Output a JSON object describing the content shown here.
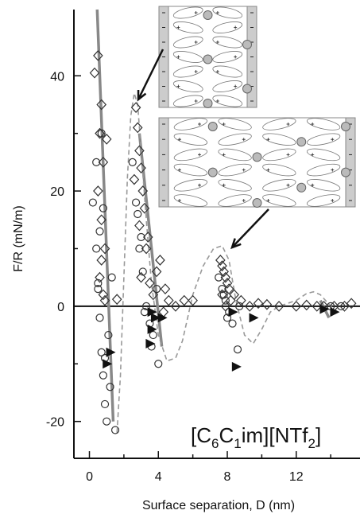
{
  "chart_data": {
    "type": "scatter",
    "xlabel": "Surface separation, D (nm)",
    "ylabel": "F/R (mN/m)",
    "annotation": [
      "[C",
      "6",
      "C",
      "1",
      "im][NTf",
      "2",
      "]"
    ],
    "xlim": [
      -0.9,
      15.7
    ],
    "ylim": [
      -26.4,
      51.5
    ],
    "xticks": [
      0,
      4,
      8,
      12
    ],
    "xminorticks": [
      2,
      6,
      10,
      14
    ],
    "yticks": [
      -20,
      0,
      20,
      40
    ],
    "yminorticks": [
      -10,
      10,
      30
    ],
    "hlines": [
      0
    ],
    "series": [
      {
        "marker": "diamond",
        "color": "#333333",
        "x": [
          0.3,
          0.5,
          0.7,
          0.6,
          0.8,
          0.5,
          0.7,
          0.9,
          0.6,
          0.8,
          1.0,
          0.7,
          0.9,
          2.7,
          2.8,
          2.9,
          3.0,
          3.1,
          3.2,
          2.6,
          2.9,
          3.3,
          3.0,
          3.4,
          3.5,
          3.7,
          3.9,
          4.1,
          4.4,
          4.6,
          5.0,
          5.5,
          6.0,
          7.6,
          7.7,
          7.8,
          7.9,
          8.0,
          8.1,
          7.7,
          7.9,
          8.2,
          8.4,
          8.8,
          9.3,
          9.8,
          10.3,
          11.0,
          12.0,
          12.6,
          13.2,
          13.6,
          14.2,
          14.8,
          15.2,
          1.6,
          4.3
        ],
        "values": [
          40.5,
          43.5,
          35,
          30,
          25,
          20,
          15,
          10,
          5,
          2,
          29,
          8,
          1,
          34.5,
          31,
          27,
          24,
          20,
          17,
          22,
          14,
          10,
          5,
          12,
          4,
          2,
          6,
          8,
          3,
          1,
          0,
          1,
          1,
          8,
          7,
          6,
          5,
          4,
          3,
          2,
          0,
          1,
          2,
          1,
          0,
          0.5,
          0.3,
          0,
          0,
          0.2,
          0,
          0,
          0,
          0,
          0.5,
          1.2,
          -1
        ]
      },
      {
        "marker": "circle",
        "color": "#333333",
        "x": [
          0.2,
          0.4,
          0.5,
          0.6,
          0.7,
          0.8,
          0.9,
          1.0,
          0.6,
          0.4,
          0.7,
          1.1,
          1.3,
          1.5,
          0.9,
          0.5,
          0.8,
          1.2,
          2.5,
          2.7,
          2.9,
          3.1,
          3.3,
          3.5,
          3.7,
          3.9,
          2.8,
          3.0,
          3.2,
          3.6,
          4.0,
          7.5,
          7.7,
          7.9,
          8.1,
          8.3,
          8.6,
          7.8,
          8.0,
          8.7,
          14.0,
          14.6
        ],
        "values": [
          18,
          10,
          4,
          -2,
          -8,
          -12,
          -17,
          -20,
          13,
          25,
          30,
          -5,
          5,
          -21.5,
          -9,
          3,
          17,
          -14,
          25,
          18,
          10,
          6,
          0,
          -3,
          -5,
          3,
          16,
          12,
          -1,
          -7,
          -10,
          5,
          3,
          1,
          -1,
          -3,
          -7.5,
          2,
          -2,
          0,
          0,
          0
        ]
      },
      {
        "marker": "triangle",
        "color": "#111111",
        "x": [
          1.0,
          1.2,
          3.6,
          3.6,
          3.5,
          3.8,
          4.2,
          9.5,
          8.5,
          8.3,
          13.6,
          14.2
        ],
        "values": [
          -10,
          -8,
          -1,
          -4,
          -6.5,
          -2,
          -2,
          -2,
          -10.5,
          -1,
          -0.5,
          -1
        ]
      },
      {
        "marker": "line",
        "color": "#888888",
        "x": [
          0.45,
          1.38,
          null,
          2.9,
          4.2,
          null,
          13.4,
          13.9
        ],
        "values": [
          51.5,
          -20,
          null,
          30,
          -7,
          null,
          1,
          -2
        ]
      },
      {
        "marker": "dashed",
        "color": "#999999",
        "x": [
          1.6,
          1.8,
          2.0,
          2.2,
          2.4,
          2.6,
          2.8,
          3.0,
          3.3,
          3.6,
          4.0,
          4.5,
          5.0,
          5.4,
          6.0,
          6.6,
          7.2,
          7.7,
          8.1,
          8.5,
          9.0,
          9.5,
          10.0,
          10.5,
          11.0,
          12.0,
          12.6,
          13.0,
          13.4,
          14.0,
          14.4
        ],
        "values": [
          -22,
          -12,
          5,
          22,
          33,
          37,
          35,
          27,
          15,
          4,
          -5,
          -9.5,
          -9,
          -6,
          2,
          7,
          10,
          10.5,
          8,
          1,
          -5,
          -6.5,
          -4,
          -1,
          0,
          1,
          2.2,
          2.5,
          2,
          0,
          -1
        ]
      }
    ]
  }
}
